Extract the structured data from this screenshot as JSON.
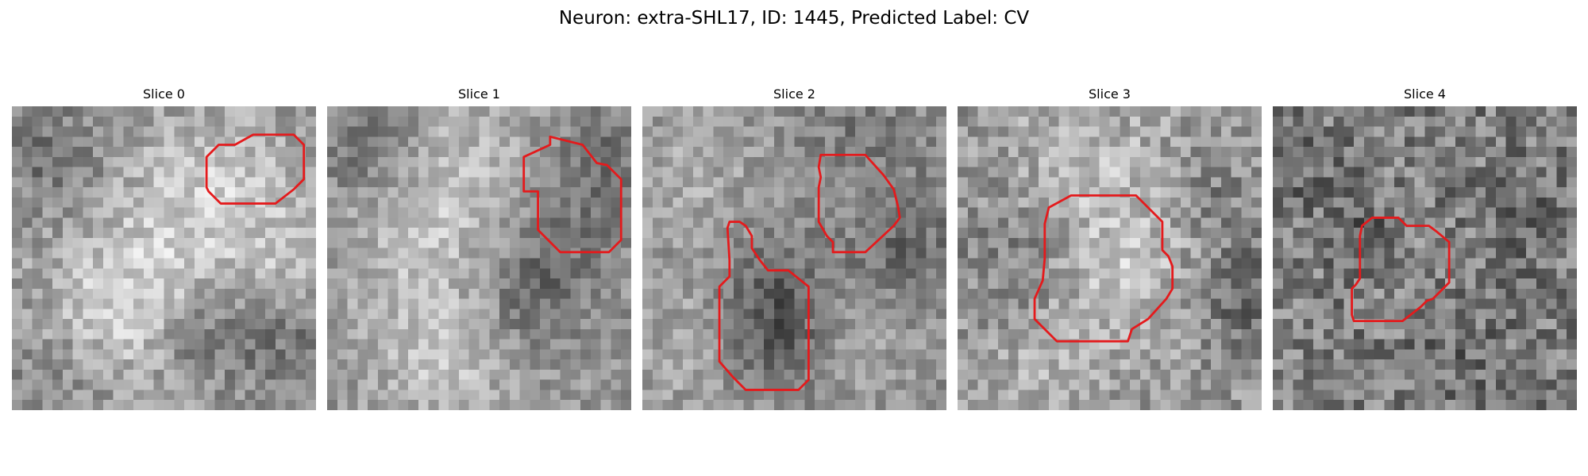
{
  "figure": {
    "title": "Neuron: extra-SHL17, ID: 1445, Predicted Label: CV"
  },
  "grid_cells": 30,
  "contour_color": "#e41a1c",
  "panels": [
    {
      "title": "Slice 0",
      "contours": [
        [
          [
            22.0,
            3.8
          ],
          [
            23.8,
            2.8
          ],
          [
            27.8,
            2.8
          ],
          [
            28.0,
            3.0
          ],
          [
            28.8,
            3.8
          ],
          [
            28.8,
            7.2
          ],
          [
            28.0,
            8.0
          ],
          [
            27.8,
            8.2
          ],
          [
            26.0,
            9.6
          ],
          [
            20.6,
            9.6
          ],
          [
            19.4,
            8.4
          ],
          [
            19.2,
            8.0
          ],
          [
            19.2,
            5.0
          ],
          [
            20.4,
            3.8
          ]
        ]
      ]
    },
    {
      "title": "Slice 1",
      "contours": [
        [
          [
            22.0,
            3.8
          ],
          [
            22.0,
            3.0
          ],
          [
            25.2,
            3.8
          ],
          [
            26.6,
            5.6
          ],
          [
            27.6,
            5.8
          ],
          [
            29.0,
            7.2
          ],
          [
            29.0,
            13.2
          ],
          [
            27.8,
            14.4
          ],
          [
            23.0,
            14.4
          ],
          [
            20.8,
            12.2
          ],
          [
            20.8,
            8.4
          ],
          [
            19.4,
            8.4
          ],
          [
            19.4,
            5.0
          ]
        ]
      ]
    },
    {
      "title": "Slice 2",
      "contours": [
        [
          [
            17.6,
            4.8
          ],
          [
            22.0,
            4.8
          ],
          [
            23.8,
            6.8
          ],
          [
            24.8,
            8.2
          ],
          [
            25.2,
            9.8
          ],
          [
            25.4,
            11.0
          ],
          [
            24.8,
            11.8
          ],
          [
            22.0,
            14.4
          ],
          [
            18.8,
            14.4
          ],
          [
            18.8,
            13.4
          ],
          [
            18.2,
            12.8
          ],
          [
            17.4,
            11.4
          ],
          [
            17.4,
            8.0
          ],
          [
            17.6,
            7.0
          ],
          [
            17.4,
            6.0
          ]
        ],
        [
          [
            8.6,
            11.4
          ],
          [
            9.6,
            11.4
          ],
          [
            10.2,
            11.8
          ],
          [
            10.8,
            12.8
          ],
          [
            10.8,
            14.0
          ],
          [
            11.6,
            15.2
          ],
          [
            12.4,
            16.2
          ],
          [
            14.4,
            16.2
          ],
          [
            16.4,
            17.8
          ],
          [
            16.4,
            27.0
          ],
          [
            15.4,
            28.0
          ],
          [
            10.2,
            28.0
          ],
          [
            9.0,
            26.8
          ],
          [
            7.6,
            25.2
          ],
          [
            7.6,
            17.8
          ],
          [
            8.6,
            16.8
          ],
          [
            8.6,
            15.2
          ],
          [
            8.4,
            12.0
          ]
        ]
      ]
    },
    {
      "title": "Slice 3",
      "contours": [
        [
          [
            9.0,
            10.0
          ],
          [
            11.2,
            8.8
          ],
          [
            17.6,
            8.8
          ],
          [
            19.6,
            10.8
          ],
          [
            20.2,
            11.4
          ],
          [
            20.2,
            14.2
          ],
          [
            20.8,
            14.8
          ],
          [
            21.2,
            15.8
          ],
          [
            21.2,
            18.0
          ],
          [
            20.6,
            19.0
          ],
          [
            18.8,
            21.0
          ],
          [
            17.2,
            22.0
          ],
          [
            16.8,
            23.2
          ],
          [
            9.8,
            23.2
          ],
          [
            8.0,
            21.4
          ],
          [
            7.6,
            21.0
          ],
          [
            7.6,
            19.0
          ],
          [
            8.4,
            17.2
          ],
          [
            8.6,
            15.0
          ],
          [
            8.6,
            11.6
          ]
        ]
      ]
    },
    {
      "title": "Slice 4",
      "contours": [
        [
          [
            8.8,
            11.8
          ],
          [
            9.8,
            11.0
          ],
          [
            12.4,
            11.0
          ],
          [
            13.2,
            11.8
          ],
          [
            15.4,
            11.8
          ],
          [
            16.2,
            12.4
          ],
          [
            17.4,
            13.4
          ],
          [
            17.4,
            17.4
          ],
          [
            16.2,
            18.6
          ],
          [
            15.8,
            19.0
          ],
          [
            15.2,
            19.2
          ],
          [
            14.6,
            19.8
          ],
          [
            12.8,
            21.2
          ],
          [
            8.0,
            21.2
          ],
          [
            7.8,
            20.6
          ],
          [
            7.8,
            18.0
          ],
          [
            8.2,
            17.6
          ],
          [
            8.6,
            17.0
          ],
          [
            8.6,
            12.8
          ]
        ]
      ]
    }
  ]
}
